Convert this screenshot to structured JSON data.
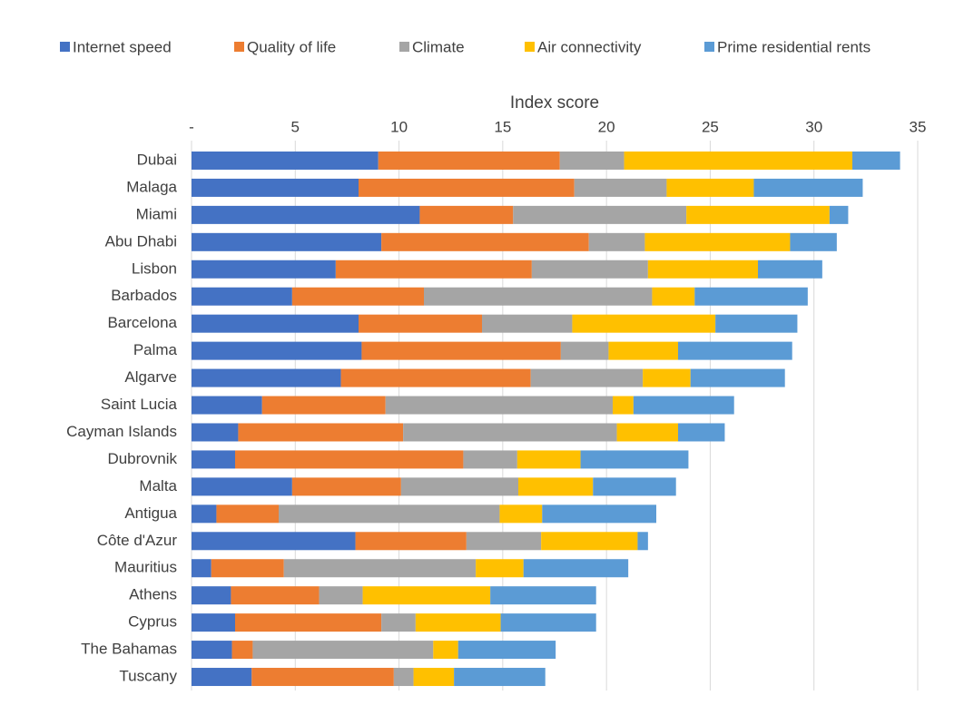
{
  "chart_data": {
    "type": "stacked-bar-horizontal",
    "x_label": "Index score",
    "categories": [
      "Dubai",
      "Malaga",
      "Miami",
      "Abu Dhabi",
      "Lisbon",
      "Barbados",
      "Barcelona",
      "Palma",
      "Algarve",
      "Saint Lucia",
      "Cayman Islands",
      "Dubrovnik",
      "Malta",
      "Antigua",
      "Côte d'Azur",
      "Mauritius",
      "Athens",
      "Cyprus",
      "The Bahamas",
      "Tuscany"
    ],
    "series": [
      {
        "name": "Internet speed",
        "color": "#4472c4",
        "values": [
          9.0,
          8.05,
          11.0,
          9.15,
          6.95,
          4.85,
          8.05,
          8.2,
          7.2,
          3.4,
          2.25,
          2.1,
          4.85,
          1.2,
          7.9,
          0.95,
          1.9,
          2.1,
          1.95,
          2.9
        ]
      },
      {
        "name": "Quality of life",
        "color": "#ed7d31",
        "values": [
          8.75,
          10.4,
          4.5,
          10.0,
          9.45,
          6.35,
          5.95,
          9.6,
          9.15,
          5.95,
          7.95,
          11.0,
          5.25,
          3.0,
          5.35,
          3.5,
          4.25,
          7.05,
          1.0,
          6.85
        ]
      },
      {
        "name": "Climate",
        "color": "#a5a5a5",
        "values": [
          3.1,
          4.45,
          8.35,
          2.7,
          5.6,
          11.0,
          4.35,
          2.3,
          5.4,
          10.95,
          10.3,
          2.6,
          5.65,
          10.65,
          3.6,
          9.25,
          2.1,
          1.65,
          8.7,
          0.95
        ]
      },
      {
        "name": "Air connectivity",
        "color": "#ffc000",
        "values": [
          11.0,
          4.2,
          6.9,
          7.0,
          5.3,
          2.05,
          6.9,
          3.35,
          2.3,
          1.0,
          2.95,
          3.05,
          3.6,
          2.05,
          4.65,
          2.3,
          6.15,
          4.1,
          1.2,
          1.95
        ]
      },
      {
        "name": "Prime residential rents",
        "color": "#5b9bd5",
        "values": [
          2.3,
          5.25,
          0.9,
          2.25,
          3.1,
          5.45,
          3.95,
          5.5,
          4.55,
          4.85,
          2.25,
          5.2,
          4.0,
          5.5,
          0.5,
          5.05,
          5.1,
          4.6,
          4.7,
          4.4
        ]
      }
    ],
    "xlim": [
      0,
      35
    ],
    "xticks": [
      {
        "value": 0,
        "label": "-"
      },
      5,
      10,
      15,
      20,
      25,
      30,
      35
    ],
    "grid": true
  }
}
